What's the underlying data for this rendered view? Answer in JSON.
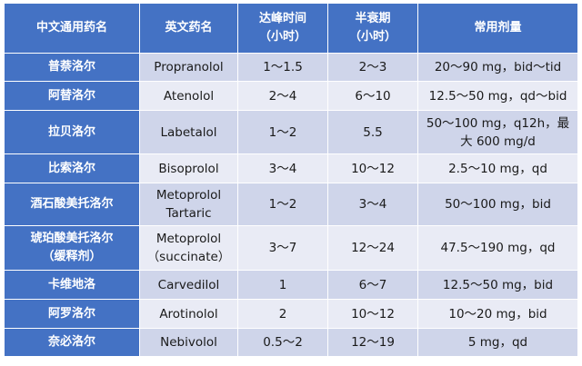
{
  "header": {
    "generic_name": "中文通用药名",
    "english_name": "英文药名",
    "tmax": [
      "达峰时间",
      "（小时）"
    ],
    "half_life": [
      "半衰期",
      "（小时）"
    ],
    "dosage": "常用剂量"
  },
  "rows": [
    {
      "generic_name": [
        "普萘洛尔"
      ],
      "english_name": [
        "Propranolol"
      ],
      "tmax": "1～1.5",
      "half_life": "2～3",
      "dosage": [
        "20～90 mg，bid～tid"
      ]
    },
    {
      "generic_name": [
        "阿替洛尔"
      ],
      "english_name": [
        "Atenolol"
      ],
      "tmax": "2～4",
      "half_life": "6～10",
      "dosage": [
        "12.5～50 mg，qd～bid"
      ]
    },
    {
      "generic_name": [
        "拉贝洛尔"
      ],
      "english_name": [
        "Labetalol"
      ],
      "tmax": "1～2",
      "half_life": "5.5",
      "dosage": [
        "50～100 mg，q12h，最",
        "大 600 mg/d"
      ]
    },
    {
      "generic_name": [
        "比索洛尔"
      ],
      "english_name": [
        "Bisoprolol"
      ],
      "tmax": "3～4",
      "half_life": "10～12",
      "dosage": [
        "2.5～10 mg，qd"
      ]
    },
    {
      "generic_name": [
        "酒石酸美托洛尔"
      ],
      "english_name": [
        "Metoprolol",
        "Tartaric"
      ],
      "tmax": "1～2",
      "half_life": "3～4",
      "dosage": [
        "50～100 mg，bid"
      ]
    },
    {
      "generic_name": [
        "琥珀酸美托洛尔",
        "（缓释剂）"
      ],
      "english_name": [
        "Metoprolol",
        "（succinate）"
      ],
      "tmax": "3～7",
      "half_life": "12～24",
      "dosage": [
        "47.5～190 mg，qd"
      ]
    },
    {
      "generic_name": [
        "卡维地洛"
      ],
      "english_name": [
        "Carvedilol"
      ],
      "tmax": "1",
      "half_life": "6～7",
      "dosage": [
        "12.5～50 mg，bid"
      ]
    },
    {
      "generic_name": [
        "阿罗洛尔"
      ],
      "english_name": [
        "Arotinolol"
      ],
      "tmax": "2",
      "half_life": "10～12",
      "dosage": [
        "10～20 mg，bid"
      ]
    },
    {
      "generic_name": [
        "奈必洛尔"
      ],
      "english_name": [
        "Nebivolol"
      ],
      "tmax": "0.5～2",
      "half_life": "12～19",
      "dosage": [
        "5 mg，qd"
      ]
    }
  ]
}
